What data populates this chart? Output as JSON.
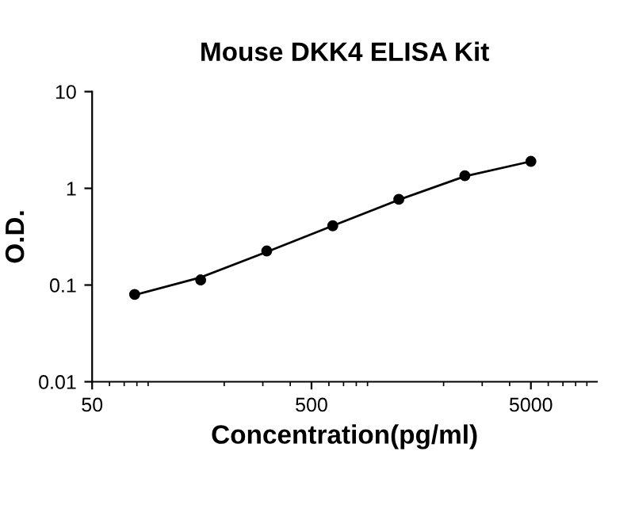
{
  "chart_data": {
    "type": "scatter",
    "title": "Mouse DKK4 ELISA Kit",
    "xlabel": "Concentration(pg/ml)",
    "ylabel": "O.D.",
    "log": "xy",
    "xlim": [
      50,
      10000
    ],
    "xticks": [
      50,
      500,
      5000
    ],
    "ylim": [
      0.01,
      10
    ],
    "yticks": [
      0.01,
      0.1,
      1,
      10
    ],
    "grid": false,
    "legend": false,
    "marker": "circle",
    "series": [
      {
        "color": "#000000",
        "x": [
          78.125,
          156.25,
          312.5,
          625,
          1250,
          2500,
          5000
        ],
        "values": [
          0.08,
          0.113,
          0.225,
          0.41,
          0.77,
          1.35,
          1.9
        ]
      },
      {
        "type": "line",
        "color": "#000000",
        "line_style": "solid",
        "marker": "none",
        "x": [
          78.125,
          156.25,
          312.5,
          625,
          1250,
          2500,
          5000
        ],
        "values": [
          0.079,
          0.12,
          0.22,
          0.41,
          0.76,
          1.33,
          1.9
        ]
      }
    ]
  }
}
